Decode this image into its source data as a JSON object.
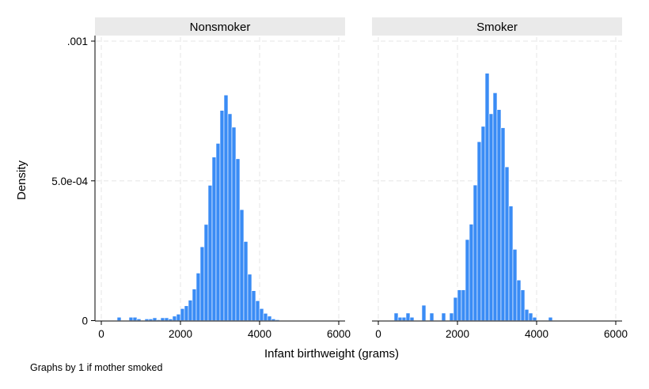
{
  "chart_data": {
    "type": "bar",
    "subtype": "histogram",
    "panels": [
      {
        "name": "Nonsmoker",
        "bin_width": 100,
        "bins": [
          {
            "x": 400,
            "y": 1.2e-05
          },
          {
            "x": 700,
            "y": 1.2e-05
          },
          {
            "x": 800,
            "y": 1.2e-05
          },
          {
            "x": 900,
            "y": 6e-06
          },
          {
            "x": 1100,
            "y": 6e-06
          },
          {
            "x": 1200,
            "y": 6e-06
          },
          {
            "x": 1300,
            "y": 1e-05
          },
          {
            "x": 1400,
            "y": 3e-06
          },
          {
            "x": 1500,
            "y": 1e-05
          },
          {
            "x": 1600,
            "y": 1e-05
          },
          {
            "x": 1700,
            "y": 6e-06
          },
          {
            "x": 1800,
            "y": 1.6e-05
          },
          {
            "x": 1900,
            "y": 2.3e-05
          },
          {
            "x": 2000,
            "y": 4.3e-05
          },
          {
            "x": 2100,
            "y": 5.3e-05
          },
          {
            "x": 2200,
            "y": 7.3e-05
          },
          {
            "x": 2300,
            "y": 0.000113
          },
          {
            "x": 2400,
            "y": 0.00017
          },
          {
            "x": 2500,
            "y": 0.000264
          },
          {
            "x": 2600,
            "y": 0.000344
          },
          {
            "x": 2700,
            "y": 0.000484
          },
          {
            "x": 2800,
            "y": 0.000585
          },
          {
            "x": 2900,
            "y": 0.000634
          },
          {
            "x": 3000,
            "y": 0.000752
          },
          {
            "x": 3100,
            "y": 0.000807
          },
          {
            "x": 3200,
            "y": 0.00074
          },
          {
            "x": 3300,
            "y": 0.000692
          },
          {
            "x": 3400,
            "y": 0.000579
          },
          {
            "x": 3500,
            "y": 0.000397
          },
          {
            "x": 3600,
            "y": 0.000283
          },
          {
            "x": 3700,
            "y": 0.000166
          },
          {
            "x": 3800,
            "y": 0.000107
          },
          {
            "x": 3900,
            "y": 7.1e-05
          },
          {
            "x": 4000,
            "y": 4.3e-05
          },
          {
            "x": 4100,
            "y": 2.6e-05
          },
          {
            "x": 4200,
            "y": 1.6e-05
          },
          {
            "x": 4300,
            "y": 6e-06
          },
          {
            "x": 4400,
            "y": 3e-06
          }
        ]
      },
      {
        "name": "Smoker",
        "bin_width": 100,
        "bins": [
          {
            "x": 400,
            "y": 2.7e-05
          },
          {
            "x": 500,
            "y": 1.2e-05
          },
          {
            "x": 600,
            "y": 1.2e-05
          },
          {
            "x": 700,
            "y": 2.7e-05
          },
          {
            "x": 800,
            "y": 1.2e-05
          },
          {
            "x": 1100,
            "y": 5.5e-05
          },
          {
            "x": 1300,
            "y": 2.7e-05
          },
          {
            "x": 1600,
            "y": 2.7e-05
          },
          {
            "x": 1800,
            "y": 2.7e-05
          },
          {
            "x": 1900,
            "y": 8.3e-05
          },
          {
            "x": 2000,
            "y": 0.00011
          },
          {
            "x": 2100,
            "y": 0.00011
          },
          {
            "x": 2200,
            "y": 0.00029
          },
          {
            "x": 2300,
            "y": 0.000345
          },
          {
            "x": 2400,
            "y": 0.000485
          },
          {
            "x": 2500,
            "y": 0.00064
          },
          {
            "x": 2600,
            "y": 0.000695
          },
          {
            "x": 2700,
            "y": 0.000885
          },
          {
            "x": 2800,
            "y": 0.00074
          },
          {
            "x": 2900,
            "y": 0.000815
          },
          {
            "x": 3000,
            "y": 0.000755
          },
          {
            "x": 3100,
            "y": 0.00069
          },
          {
            "x": 3200,
            "y": 0.00055
          },
          {
            "x": 3300,
            "y": 0.00041
          },
          {
            "x": 3400,
            "y": 0.000255
          },
          {
            "x": 3500,
            "y": 0.000145
          },
          {
            "x": 3600,
            "y": 0.00011
          },
          {
            "x": 3700,
            "y": 4e-05
          },
          {
            "x": 3800,
            "y": 2.7e-05
          },
          {
            "x": 3900,
            "y": 1.2e-05
          },
          {
            "x": 4300,
            "y": 1.2e-05
          }
        ]
      }
    ],
    "xlabel": "Infant birthweight (grams)",
    "ylabel": "Density",
    "xlim": [
      0,
      6000
    ],
    "ylim": [
      0,
      0.001
    ],
    "xticks": [
      0,
      2000,
      4000,
      6000
    ],
    "xtick_labels": [
      "0",
      "2000",
      "4000",
      "6000"
    ],
    "yticks": [
      0,
      0.0005,
      0.001
    ],
    "ytick_labels": [
      "0",
      "5.0e-04",
      ".001"
    ],
    "grid": true,
    "bar_color": "#3a8cf5",
    "strip_color": "#eaeaea",
    "grid_color": "#e6e6e6",
    "note": "Graphs by 1 if mother smoked"
  }
}
